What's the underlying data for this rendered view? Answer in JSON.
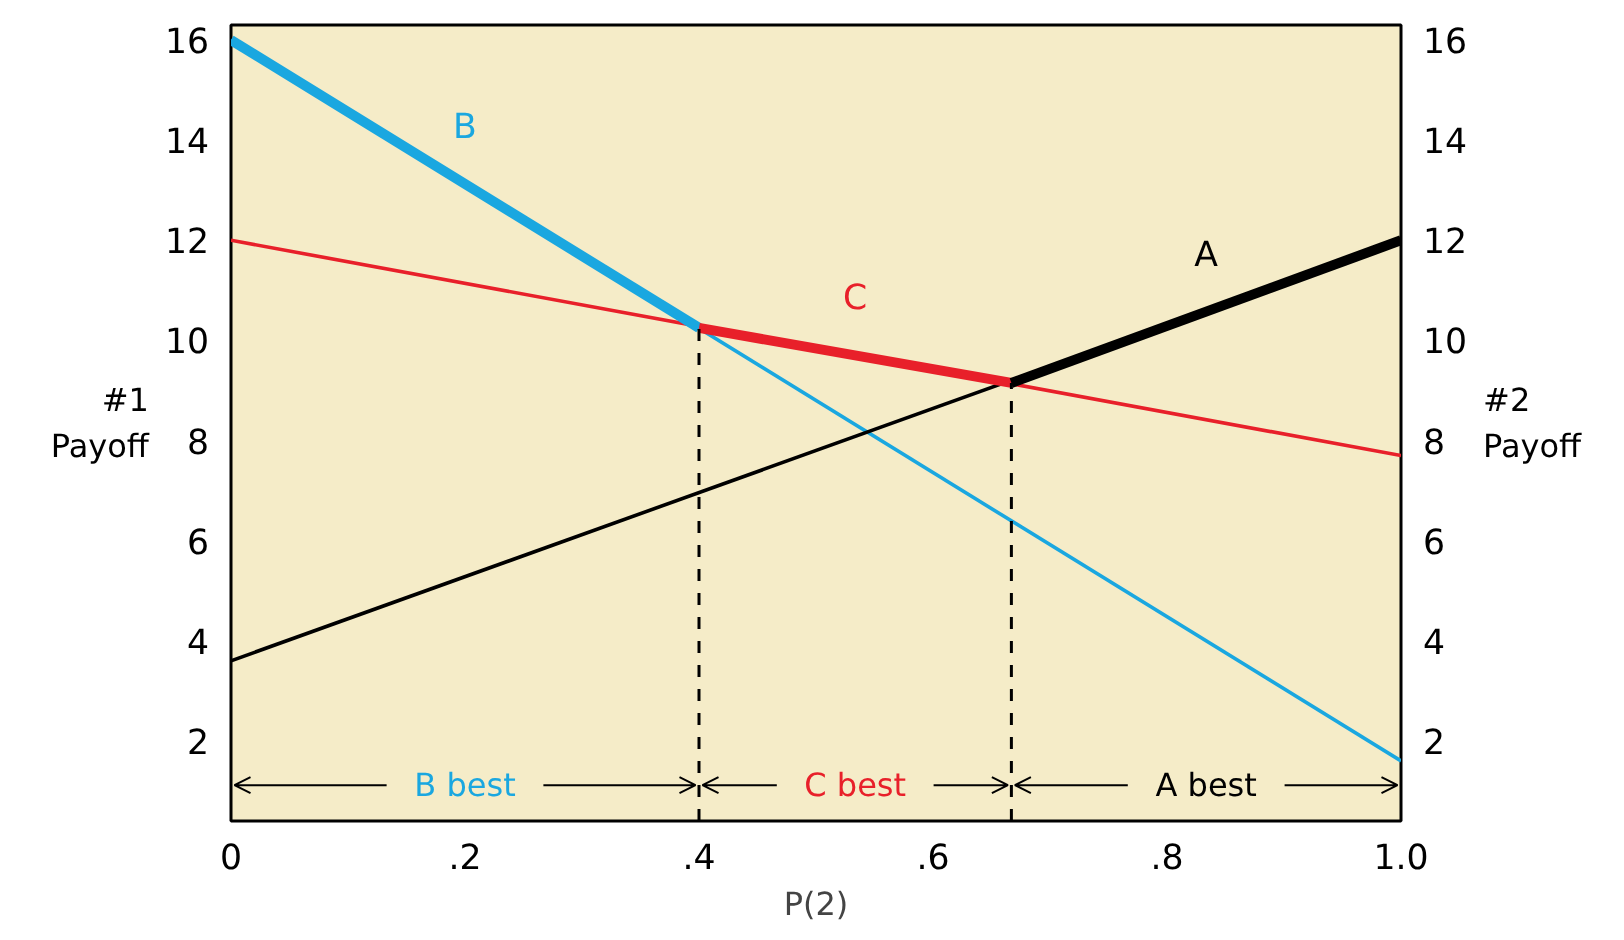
{
  "chart_data": {
    "type": "line",
    "xlabel": "P(2)",
    "ylabel": "#1\nPayoff",
    "y2label": "#2\nPayoff",
    "xlim": [
      0,
      1
    ],
    "xticks": [
      0,
      {
        "value": 0.2,
        "label": ".2"
      },
      {
        "value": 0.4,
        "label": ".4"
      },
      {
        "value": 0.6,
        "label": ".6"
      },
      {
        "value": 0.8,
        "label": ".8"
      },
      {
        "value": 1,
        "label": "1.0"
      }
    ],
    "ylim": [
      0.4,
      16.3
    ],
    "yticks": [
      2,
      4,
      6,
      8,
      10,
      12,
      14,
      16
    ],
    "y2lim": [
      0.4,
      16.3
    ],
    "y2ticks": [
      2,
      4,
      6,
      8,
      10,
      12,
      14,
      16
    ],
    "grid": false,
    "marker": "none",
    "line_style": "solid",
    "series": [
      {
        "color": "#1aa7e0",
        "x": [
          0,
          1
        ],
        "values": [
          16,
          1.6
        ]
      },
      {
        "color": "#e8202a",
        "x": [
          0,
          1
        ],
        "values": [
          12,
          7.7
        ]
      },
      {
        "color": "#000000",
        "x": [
          0,
          1
        ],
        "values": [
          3.6,
          12
        ]
      },
      {
        "name": "B",
        "color": "#1aa7e0",
        "x": [
          0,
          0.4
        ],
        "values": [
          16,
          10.25
        ]
      },
      {
        "name": "C",
        "color": "#e8202a",
        "x": [
          0.4,
          0.667
        ],
        "values": [
          10.25,
          9.15
        ]
      },
      {
        "name": "A",
        "color": "#000000",
        "x": [
          0.667,
          1
        ],
        "values": [
          9.15,
          12
        ]
      }
    ],
    "ref_lines": [
      {
        "axis": "x",
        "value": 0.4,
        "line_style": "dashed",
        "color": "#000000"
      },
      {
        "axis": "x",
        "value": 0.667,
        "line_style": "dashed",
        "color": "#000000"
      }
    ],
    "annotations": [
      "B best",
      "C best",
      "A best"
    ]
  }
}
